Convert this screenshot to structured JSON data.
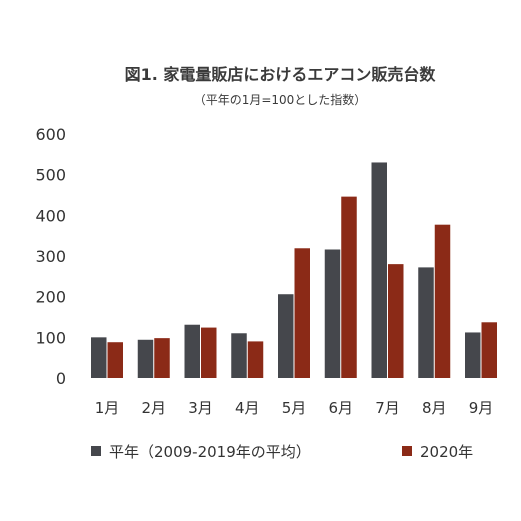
{
  "chart_data": {
    "type": "bar",
    "title": "図1. 家電量販店におけるエアコン販売台数",
    "subtitle": "（平年の1月=100とした指数）",
    "categories": [
      "1月",
      "2月",
      "3月",
      "4月",
      "5月",
      "6月",
      "7月",
      "8月",
      "9月"
    ],
    "series": [
      {
        "name": "平年（2009-2019年の平均）",
        "values": [
          100,
          94,
          131,
          110,
          206,
          316,
          530,
          272,
          112
        ],
        "color": "#45474c"
      },
      {
        "name": "2020年",
        "values": [
          88,
          98,
          124,
          90,
          319,
          446,
          280,
          377,
          137
        ],
        "color": "#8b2a17"
      }
    ],
    "ylim": [
      0,
      600
    ],
    "yticks": [
      0,
      100,
      200,
      300,
      400,
      500,
      600
    ],
    "xlabel": "",
    "ylabel": "",
    "grid": false,
    "legend": "bottom"
  }
}
